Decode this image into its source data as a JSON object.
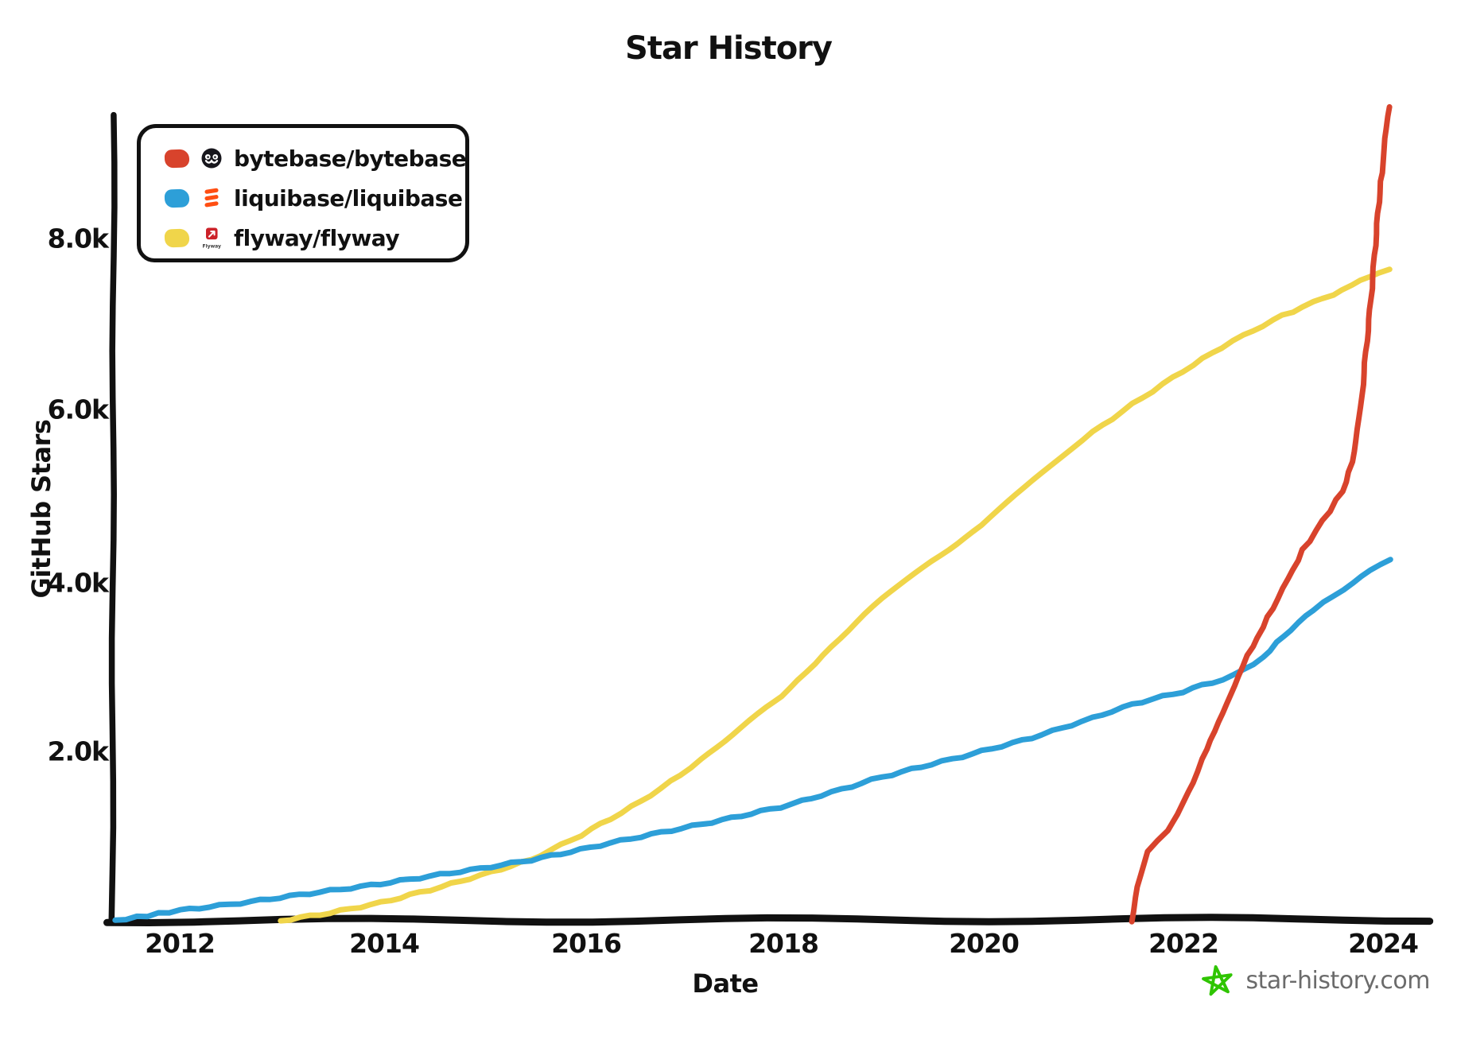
{
  "title": "Star History",
  "y_axis": {
    "label": "GitHub Stars",
    "ticks": [
      "8.0k",
      "6.0k",
      "4.0k",
      "2.0k"
    ]
  },
  "x_axis": {
    "label": "Date",
    "ticks": [
      "2012",
      "2014",
      "2016",
      "2018",
      "2020",
      "2022",
      "2024"
    ]
  },
  "legend": [
    {
      "name": "bytebase/bytebase",
      "color": "#D8432C",
      "logo": "bytebase-logo"
    },
    {
      "name": "liquibase/liquibase",
      "color": "#2D9FD8",
      "logo": "liquibase-logo"
    },
    {
      "name": "flyway/flyway",
      "color": "#F0D54A",
      "logo": "flyway-logo",
      "logo_caption": "Flyway"
    }
  ],
  "watermark": {
    "text": "star-history.com",
    "star_color": "#2FC500",
    "text_color": "#6B6B6B"
  },
  "colors": {
    "axis": "#111111",
    "background": "#ffffff"
  },
  "chart_data": {
    "type": "line",
    "title": "Star History",
    "xlabel": "Date",
    "ylabel": "GitHub Stars",
    "xlim": [
      2011.3,
      2024.4
    ],
    "ylim": [
      0,
      9600
    ],
    "x_ticks": [
      2012,
      2014,
      2016,
      2018,
      2020,
      2022,
      2024
    ],
    "y_ticks": [
      2000,
      4000,
      6000,
      8000
    ],
    "y_tick_labels": [
      "2.0k",
      "4.0k",
      "6.0k",
      "8.0k"
    ],
    "grid": false,
    "legend_position": "top-left",
    "series": [
      {
        "name": "bytebase/bytebase",
        "color": "#D8432C",
        "points": [
          [
            2021.5,
            0
          ],
          [
            2021.55,
            420
          ],
          [
            2021.65,
            840
          ],
          [
            2021.85,
            1060
          ],
          [
            2022.0,
            1380
          ],
          [
            2022.2,
            1900
          ],
          [
            2022.4,
            2450
          ],
          [
            2022.6,
            3000
          ],
          [
            2022.8,
            3450
          ],
          [
            2023.0,
            3900
          ],
          [
            2023.2,
            4350
          ],
          [
            2023.4,
            4700
          ],
          [
            2023.6,
            5050
          ],
          [
            2023.72,
            5500
          ],
          [
            2023.8,
            6300
          ],
          [
            2023.88,
            7300
          ],
          [
            2023.95,
            8300
          ],
          [
            2024.0,
            8900
          ],
          [
            2024.06,
            9550
          ]
        ]
      },
      {
        "name": "liquibase/liquibase",
        "color": "#2D9FD8",
        "points": [
          [
            2011.35,
            20
          ],
          [
            2012,
            140
          ],
          [
            2012.5,
            210
          ],
          [
            2013,
            290
          ],
          [
            2013.5,
            370
          ],
          [
            2014,
            450
          ],
          [
            2014.5,
            540
          ],
          [
            2015,
            630
          ],
          [
            2015.5,
            730
          ],
          [
            2016,
            850
          ],
          [
            2016.5,
            980
          ],
          [
            2017,
            1100
          ],
          [
            2017.5,
            1220
          ],
          [
            2018,
            1350
          ],
          [
            2018.5,
            1520
          ],
          [
            2019,
            1700
          ],
          [
            2019.5,
            1850
          ],
          [
            2020,
            2000
          ],
          [
            2020.5,
            2160
          ],
          [
            2021,
            2350
          ],
          [
            2021.5,
            2550
          ],
          [
            2022,
            2700
          ],
          [
            2022.5,
            2880
          ],
          [
            2022.8,
            3100
          ],
          [
            2023,
            3350
          ],
          [
            2023.3,
            3650
          ],
          [
            2023.6,
            3900
          ],
          [
            2024.07,
            4250
          ]
        ]
      },
      {
        "name": "flyway/flyway",
        "color": "#F0D54A",
        "points": [
          [
            2013,
            20
          ],
          [
            2013.5,
            110
          ],
          [
            2014,
            230
          ],
          [
            2014.5,
            380
          ],
          [
            2015,
            550
          ],
          [
            2015.5,
            730
          ],
          [
            2016,
            1020
          ],
          [
            2016.4,
            1280
          ],
          [
            2016.8,
            1560
          ],
          [
            2017.2,
            1900
          ],
          [
            2017.6,
            2280
          ],
          [
            2018,
            2650
          ],
          [
            2018.5,
            3230
          ],
          [
            2019,
            3780
          ],
          [
            2019.5,
            4230
          ],
          [
            2020,
            4650
          ],
          [
            2020.5,
            5160
          ],
          [
            2021,
            5650
          ],
          [
            2021.5,
            6060
          ],
          [
            2022,
            6450
          ],
          [
            2022.5,
            6800
          ],
          [
            2023,
            7100
          ],
          [
            2023.5,
            7350
          ],
          [
            2024.06,
            7650
          ]
        ]
      }
    ]
  }
}
